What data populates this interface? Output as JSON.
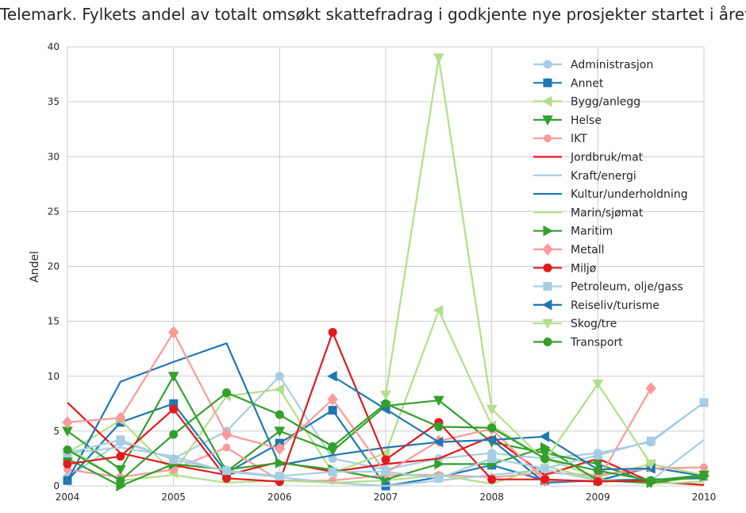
{
  "chart_data": {
    "type": "line",
    "title": "Telemark. Fylkets andel av totalt omsøkt skattefradrag i godkjente nye prosjekter startet i året",
    "ylabel": "Andel",
    "xlabel": "",
    "xlim": [
      2004,
      2010
    ],
    "ylim": [
      0,
      40
    ],
    "xticks": [
      2004,
      2005,
      2006,
      2007,
      2008,
      2009,
      2010
    ],
    "yticks": [
      0,
      5,
      10,
      15,
      20,
      25,
      30,
      35,
      40
    ],
    "grid": true,
    "legend_position": "top-right",
    "x": [
      2004,
      2004.5,
      2005,
      2005.5,
      2006,
      2006.5,
      2007,
      2007.5,
      2008,
      2008.5,
      2009,
      2009.5,
      2010
    ],
    "series": [
      {
        "name": "Administrasjon",
        "color": "#a6cee3",
        "marker": "circle",
        "values": [
          0.8,
          4.0,
          2.5,
          5.0,
          10.0,
          2.5,
          1.5,
          2.5,
          3.0,
          2.5,
          3.0,
          4.0,
          7.6
        ]
      },
      {
        "name": "Annet",
        "color": "#1f78b4",
        "marker": "square",
        "values": [
          0.5,
          5.8,
          7.5,
          1.2,
          3.9,
          6.9,
          0.0,
          0.8,
          1.9,
          0.5,
          0.5,
          1.7,
          0.9
        ]
      },
      {
        "name": "Bygg/anlegg",
        "color": "#b2df8a",
        "marker": "triangle-left",
        "values": [
          3.0,
          6.0,
          1.2,
          8.2,
          8.8,
          1.2,
          3.0,
          16.0,
          5.5,
          2.5,
          0.8,
          2.0,
          1.0
        ]
      },
      {
        "name": "Helse",
        "color": "#33a02c",
        "marker": "triangle-down",
        "values": [
          5.0,
          1.5,
          10.0,
          1.3,
          5.0,
          3.2,
          7.3,
          7.8,
          4.0,
          3.0,
          2.0,
          0.3,
          1.0
        ]
      },
      {
        "name": "IKT",
        "color": "#fb9a99",
        "marker": "hexagon",
        "values": [
          1.5,
          0.8,
          1.5,
          3.5,
          0.5,
          0.5,
          1.0,
          1.0,
          0.8,
          1.2,
          1.0,
          1.6,
          1.7
        ]
      },
      {
        "name": "Jordbruk/mat",
        "color": "#e31a1c",
        "marker": "none",
        "values": [
          7.6,
          3.0,
          1.9,
          1.0,
          2.2,
          1.3,
          2.0,
          2.5,
          4.5,
          1.0,
          2.5,
          0.4,
          0.1
        ]
      },
      {
        "name": "Kraft/energi",
        "color": "#a6cee3",
        "marker": "none",
        "values": [
          3.0,
          3.5,
          2.7,
          1.3,
          0.8,
          0.3,
          0.0,
          0.5,
          1.0,
          1.5,
          0.5,
          0.5,
          4.2
        ]
      },
      {
        "name": "Kultur/underholdning",
        "color": "#1f78b4",
        "marker": "none",
        "values": [
          0.5,
          9.5,
          11.3,
          13.0,
          1.9,
          2.8,
          3.5,
          4.0,
          4.2,
          0.3,
          0.5,
          0.6,
          0.7
        ]
      },
      {
        "name": "Marin/sjømat",
        "color": "#b2df8a",
        "marker": "none",
        "values": [
          3.5,
          0.5,
          1.0,
          0.3,
          0.5,
          0.3,
          0.5,
          1.0,
          0.2,
          1.8,
          0.6,
          0.2,
          0.4
        ]
      },
      {
        "name": "Maritim",
        "color": "#33a02c",
        "marker": "triangle-right",
        "values": [
          2.5,
          0.0,
          2.0,
          1.5,
          2.1,
          1.5,
          0.6,
          2.0,
          2.0,
          3.5,
          0.5,
          0.3,
          0.9
        ]
      },
      {
        "name": "Metall",
        "color": "#fb9a99",
        "marker": "diamond",
        "values": [
          5.8,
          6.2,
          14.0,
          4.7,
          3.4,
          7.9,
          1.2,
          4.1,
          5.2,
          0.5,
          0.5,
          8.9,
          null
        ]
      },
      {
        "name": "Miljø",
        "color": "#e31a1c",
        "marker": "circle",
        "values": [
          2.0,
          2.7,
          7.0,
          0.7,
          0.4,
          14.0,
          2.4,
          5.8,
          0.6,
          0.6,
          0.4,
          0.5,
          null
        ]
      },
      {
        "name": "Petroleum, olje/gass",
        "color": "#a6cee3",
        "marker": "square",
        "values": [
          3.0,
          4.2,
          2.4,
          1.4,
          0.9,
          1.3,
          1.3,
          0.7,
          2.5,
          1.6,
          2.8,
          4.1,
          7.6
        ]
      },
      {
        "name": "Reiseliv/turisme",
        "color": "#1f78b4",
        "marker": "triangle-left",
        "values": [
          null,
          null,
          null,
          null,
          null,
          10.0,
          7.0,
          4.0,
          4.2,
          4.5,
          1.5,
          1.6,
          null
        ]
      },
      {
        "name": "Skog/tre",
        "color": "#b2df8a",
        "marker": "triangle-down",
        "values": [
          null,
          null,
          null,
          null,
          null,
          null,
          8.3,
          39.0,
          7.0,
          2.3,
          9.3,
          2.0,
          null
        ]
      },
      {
        "name": "Transport",
        "color": "#33a02c",
        "marker": "circle",
        "values": [
          3.3,
          0.5,
          4.7,
          8.5,
          6.5,
          3.6,
          7.5,
          5.4,
          5.3,
          2.5,
          1.4,
          0.5,
          1.0
        ]
      }
    ]
  }
}
